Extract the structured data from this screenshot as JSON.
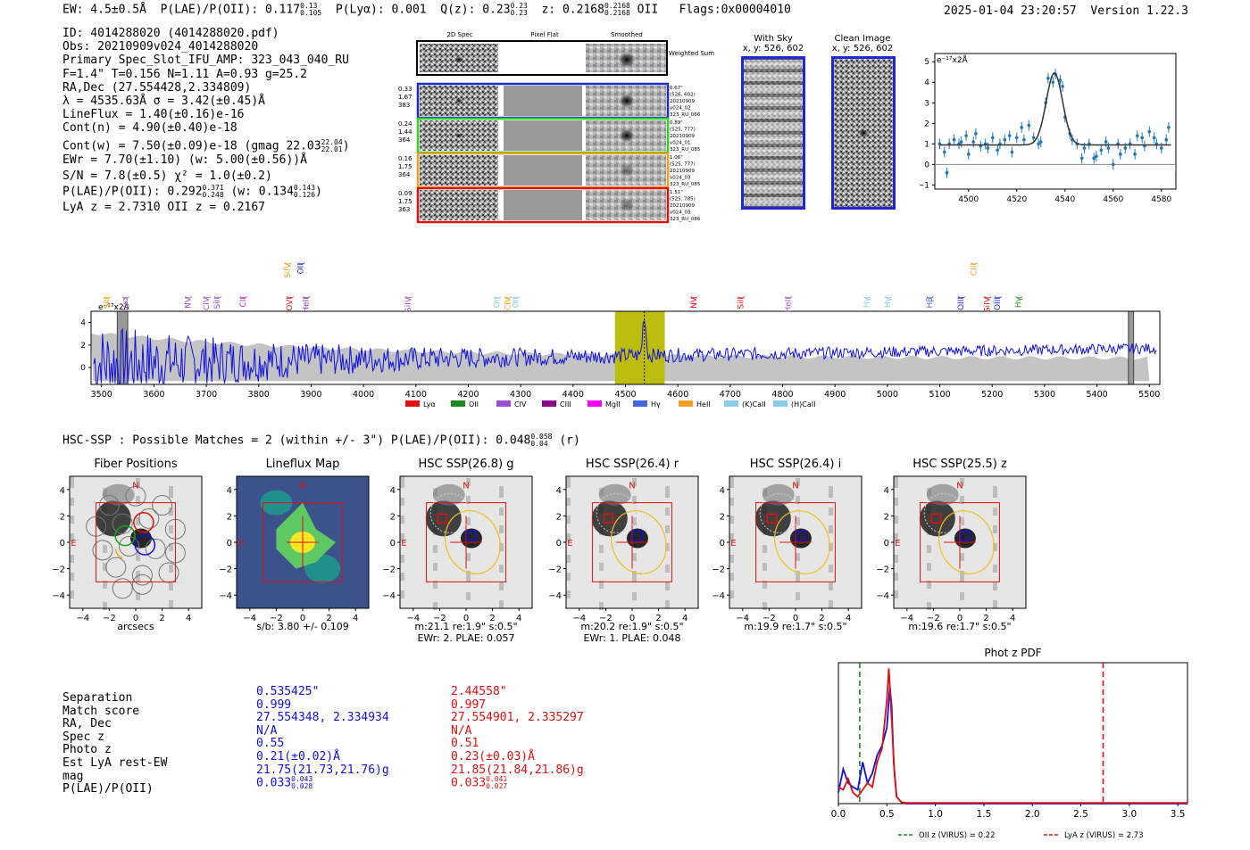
{
  "header": {
    "ew": "EW: 4.5±0.5Å",
    "plae_label": "P(LAE)/P(OII): 0.117",
    "plae_hi": "0.13",
    "plae_lo": "0.105",
    "plya": "P(Lyα): 0.001",
    "qz_label": "Q(z): 0.23",
    "qz_hi": "0.23",
    "qz_lo": "0.23",
    "z_label": "z: 0.2168",
    "z_hi": "0.2168",
    "z_lo": "0.2168",
    "z_line": "OII",
    "flags": "Flags:0x00004010",
    "datetime": "2025-01-04 23:20:57",
    "version": "Version 1.22.3"
  },
  "info": [
    "ID: 4014288020 (4014288020.pdf)",
    "Obs: 20210909v024_4014288020",
    "Primary Spec_Slot_IFU_AMP: 323_043_040_RU",
    "F=1.4\"  T=0.156  N=1.11  A=0.93  g=25.2",
    "RA,Dec (27.554428,2.334809)",
    "λ = 4535.63Å  σ = 3.42(±0.45)Å",
    "LineFlux = 1.40(±0.16)e-16",
    "Cont(n) = 4.90(±0.40)e-18"
  ],
  "info2": {
    "contw": "Cont(w) = 7.50(±0.09)e-18 (gmag 22.03",
    "contw_hi": "22.04",
    "contw_lo": "22.01",
    "contw_end": ")",
    "ewr": "EWr = 7.70(±1.10) (w: 5.00(±0.56))Å",
    "sn": "S/N = 7.8(±0.5)  χ² = 1.0(±0.2)",
    "plae2": "P(LAE)/P(OII): 0.292",
    "plae2_hi": "0.371",
    "plae2_lo": "0.248",
    "plae2_w": "(w: 0.134",
    "plae2_whi": "0.143",
    "plae2_wlo": "0.126",
    "plae2_end": ")",
    "lya": "LyA z = 2.7310  OII z = 0.2167"
  },
  "cutouts": {
    "col_headers": [
      "2D Spec",
      "Pixel Flat",
      "Smoothed"
    ],
    "weighted_label": "Weighted Sum",
    "rows": [
      {
        "left": [
          "0.33",
          "1.67",
          "383"
        ],
        "right": [
          "0.67\"",
          "(526, 602)",
          "20210909",
          "v024_02",
          "323_RU_066"
        ],
        "color": "#1f28d8"
      },
      {
        "left": [
          "0.24",
          "1.44",
          "364"
        ],
        "right": [
          "0.89\"",
          "(525, 777)",
          "20210909",
          "v024_01",
          "323_RU_085"
        ],
        "color": "#2fd12f"
      },
      {
        "left": [
          "0.16",
          "1.75",
          "364"
        ],
        "right": [
          "1.06\"",
          "(525, 777)",
          "20210909",
          "v024_03",
          "323_RU_085"
        ],
        "color": "#f0a020"
      },
      {
        "left": [
          "0.09",
          "1.75",
          "363"
        ],
        "right": [
          "1.51\"",
          "(525, 785)",
          "20210909",
          "v024_03",
          "323_RU_086"
        ],
        "color": "#e01010"
      }
    ]
  },
  "sky": {
    "with_sky": "With Sky",
    "clean": "Clean Image",
    "xy": "x, y: 526, 602"
  },
  "zoom_chart": {
    "unit": "e⁻¹⁷x2Å",
    "x_ticks": [
      "4500",
      "4520",
      "4540",
      "4560",
      "4580"
    ],
    "y_ticks": [
      "5",
      "4",
      "3",
      "2",
      "1",
      "0",
      "−1"
    ]
  },
  "spectrum": {
    "unit": "e⁻¹⁷x2Å",
    "x_ticks": [
      "3500",
      "3600",
      "3700",
      "3800",
      "3900",
      "4000",
      "4100",
      "4200",
      "4300",
      "4400",
      "4500",
      "4600",
      "4700",
      "4800",
      "4900",
      "5000",
      "5100",
      "5200",
      "5300",
      "5400",
      "5500"
    ],
    "y_ticks": [
      "4",
      "2",
      "0"
    ],
    "lines": [
      {
        "name": "SiII",
        "w": 3510,
        "color": "#f0a020",
        "row": 0
      },
      {
        "name": "Lyα",
        "w": 3545,
        "color": "#9b4fd1",
        "row": 0
      },
      {
        "name": "NV",
        "w": 3665,
        "color": "#9b4fd1",
        "row": 0
      },
      {
        "name": "CIV",
        "w": 3700,
        "color": "#9b4fd1",
        "row": 0
      },
      {
        "name": "SiII",
        "w": 3720,
        "color": "#9b4fd1",
        "row": 0
      },
      {
        "name": "CII",
        "w": 3770,
        "color": "#c020c0",
        "row": 0
      },
      {
        "name": "SiIV",
        "w": 3855,
        "color": "#f0a020",
        "row": 1
      },
      {
        "name": "OII",
        "w": 3880,
        "color": "#1f28d8",
        "row": 1
      },
      {
        "name": "OVI",
        "w": 3858,
        "color": "#e01010",
        "row": 0
      },
      {
        "name": "HeII",
        "w": 3890,
        "color": "#7a2f9a",
        "row": 0
      },
      {
        "name": "SiIV",
        "w": 4085,
        "color": "#9b4fd1",
        "row": 0
      },
      {
        "name": "OII",
        "w": 4255,
        "color": "#87ceeb",
        "row": 0
      },
      {
        "name": "CIV",
        "w": 4275,
        "color": "#f0a020",
        "row": 0
      },
      {
        "name": "OII",
        "w": 4290,
        "color": "#87ceeb",
        "row": 0
      },
      {
        "name": "NV",
        "w": 4630,
        "color": "#e01010",
        "row": 0
      },
      {
        "name": "SiII",
        "w": 4720,
        "color": "#e01010",
        "row": 0
      },
      {
        "name": "HeII",
        "w": 4810,
        "color": "#9b4fd1",
        "row": 0
      },
      {
        "name": "Hγ",
        "w": 4960,
        "color": "#87ceeb",
        "row": 0
      },
      {
        "name": "Hγ",
        "w": 5000,
        "color": "#87ceeb",
        "row": 0
      },
      {
        "name": "Hβ",
        "w": 5080,
        "color": "#4169e1",
        "row": 0
      },
      {
        "name": "OIII",
        "w": 5140,
        "color": "#1f28d8",
        "row": 0
      },
      {
        "name": "SiIV",
        "w": 5190,
        "color": "#e01010",
        "row": 0
      },
      {
        "name": "OIII",
        "w": 5210,
        "color": "#1f28d8",
        "row": 0
      },
      {
        "name": "CIII",
        "w": 5165,
        "color": "#f0a020",
        "row": 1
      },
      {
        "name": "Hγ",
        "w": 5250,
        "color": "#1a9a1a",
        "row": 0
      }
    ],
    "legend": [
      {
        "label": "Lyα",
        "color": "#e01010"
      },
      {
        "label": "OII",
        "color": "#1a8a1a"
      },
      {
        "label": "CIV",
        "color": "#9b4fd1"
      },
      {
        "label": "CIII",
        "color": "#8b008b"
      },
      {
        "label": "MgII",
        "color": "#ff00ff"
      },
      {
        "label": "Hγ",
        "color": "#4169e1"
      },
      {
        "label": "HeII",
        "color": "#f0a020"
      },
      {
        "label": "(K)CaII",
        "color": "#87ceeb"
      },
      {
        "label": "(H)CaII",
        "color": "#87ceeb"
      }
    ]
  },
  "hsc": {
    "title": "HSC-SSP : Possible Matches = 2 (within +/- 3\")  P(LAE)/P(OII): 0.048",
    "hi": "0.058",
    "lo": "0.04",
    "band": "(r)"
  },
  "panels": [
    {
      "title": "Fiber Positions",
      "cap1": "arcsecs",
      "cap2": ""
    },
    {
      "title": "Lineflux Map",
      "cap1": "s/b: 3.80 +/- 0.109",
      "cap2": ""
    },
    {
      "title": "HSC SSP(26.8) g",
      "cap1": "m:21.1  re:1.9\"  s:0.5\"",
      "cap2": "EWr: 2. PLAE: 0.057"
    },
    {
      "title": "HSC SSP(26.4) r",
      "cap1": "m:20.2  re:1.9\"  s:0.5\"",
      "cap2": "EWr: 1. PLAE: 0.048"
    },
    {
      "title": "HSC SSP(26.4) i",
      "cap1": "m:19.9  re:1.7\"  s:0.5\"",
      "cap2": ""
    },
    {
      "title": "HSC SSP(25.5) z",
      "cap1": "m:19.6  re:1.7\"  s:0.5\"",
      "cap2": ""
    }
  ],
  "panel_ticks": {
    "x": [
      "−4",
      "−2",
      "0",
      "2",
      "4"
    ],
    "y": [
      "4",
      "2",
      "0",
      "−2",
      "−4"
    ],
    "n": "N",
    "e": "E"
  },
  "match_table": {
    "labels": [
      "Separation",
      "Match score",
      "RA, Dec",
      "Spec z",
      "Photo z",
      "Est LyA rest-EW",
      "mag",
      "P(LAE)/P(OII)"
    ],
    "blue": [
      "0.535425\"",
      "0.999",
      "27.554348, 2.334934",
      "N/A",
      "0.55",
      "0.21(±0.02)Å",
      "21.75(21.73,21.76)g",
      "0.033"
    ],
    "blue_hi": "0.043",
    "blue_lo": "0.028",
    "red": [
      "2.44558\"",
      "0.997",
      "27.554901, 2.335297",
      "N/A",
      "0.51",
      "0.23(±0.03)Å",
      "21.85(21.84,21.86)g",
      "0.033"
    ],
    "red_hi": "0.041",
    "red_lo": "0.027",
    "blue_color": "#1010e0",
    "red_color": "#e01010"
  },
  "chart_data": [
    {
      "type": "line",
      "title": "Phot z PDF",
      "xlabel": "",
      "ylabel": "",
      "xlim": [
        0,
        3.6
      ],
      "x_ticks": [
        "0.0",
        "0.5",
        "1.0",
        "1.5",
        "2.0",
        "2.5",
        "3.0",
        "3.5"
      ],
      "series": [
        {
          "name": "blue match",
          "color": "#1010e0",
          "x": [
            0,
            0.05,
            0.1,
            0.15,
            0.2,
            0.25,
            0.3,
            0.35,
            0.4,
            0.45,
            0.5,
            0.53,
            0.55,
            0.57,
            0.6,
            0.65,
            0.7,
            1.0,
            3.6
          ],
          "y": [
            0.08,
            0.25,
            0.15,
            0.12,
            0.1,
            0.3,
            0.15,
            0.22,
            0.35,
            0.42,
            0.55,
            0.85,
            0.7,
            0.3,
            0.05,
            0.01,
            0,
            0,
            0
          ]
        },
        {
          "name": "red match",
          "color": "#e01010",
          "x": [
            0,
            0.05,
            0.1,
            0.15,
            0.2,
            0.25,
            0.3,
            0.35,
            0.4,
            0.45,
            0.5,
            0.52,
            0.55,
            0.58,
            0.6,
            0.65,
            0.7,
            1.0,
            3.6
          ],
          "y": [
            0.12,
            0.1,
            0.18,
            0.08,
            0.05,
            0.1,
            0.15,
            0.12,
            0.3,
            0.4,
            0.75,
            0.98,
            0.6,
            0.2,
            0.05,
            0.01,
            0.005,
            0.005,
            0.005
          ]
        }
      ],
      "vlines": [
        {
          "x": 0.22,
          "color": "#1a8a1a",
          "label": "OII z (VIRUS) = 0.22"
        },
        {
          "x": 2.73,
          "color": "#e01010",
          "label": "LyA z (VIRUS) = 2.73"
        }
      ]
    },
    {
      "type": "line",
      "title": "",
      "unit": "e⁻¹⁷x2Å",
      "xlim": [
        4486,
        4586
      ],
      "ylim": [
        -1.2,
        5.4
      ],
      "fit": {
        "mu": 4535.6,
        "sigma": 3.4,
        "amp": 3.5,
        "base": 0.95
      },
      "points": [
        [
          4488,
          1.0
        ],
        [
          4490,
          0.6
        ],
        [
          4491,
          -0.4
        ],
        [
          4492,
          1.0
        ],
        [
          4494,
          1.2
        ],
        [
          4496,
          1.0
        ],
        [
          4497,
          1.1
        ],
        [
          4499,
          1.4
        ],
        [
          4500,
          0.5
        ],
        [
          4502,
          1.1
        ],
        [
          4503,
          1.5
        ],
        [
          4505,
          0.9
        ],
        [
          4507,
          1.0
        ],
        [
          4508,
          0.8
        ],
        [
          4510,
          1.3
        ],
        [
          4512,
          0.7
        ],
        [
          4513,
          1.0
        ],
        [
          4515,
          1.2
        ],
        [
          4517,
          1.4
        ],
        [
          4518,
          0.6
        ],
        [
          4520,
          1.3
        ],
        [
          4522,
          1.8
        ],
        [
          4523,
          1.2
        ],
        [
          4525,
          1.9
        ],
        [
          4527,
          1.3
        ],
        [
          4529,
          1.0
        ],
        [
          4530,
          1.1
        ],
        [
          4532,
          3.0
        ],
        [
          4533,
          4.2
        ],
        [
          4535,
          4.0
        ],
        [
          4536,
          4.4
        ],
        [
          4538,
          4.1
        ],
        [
          4539,
          3.8
        ],
        [
          4540,
          2.3
        ],
        [
          4542,
          1.5
        ],
        [
          4543,
          1.2
        ],
        [
          4545,
          1.0
        ],
        [
          4547,
          0.3
        ],
        [
          4548,
          0.8
        ],
        [
          4550,
          1.0
        ],
        [
          4552,
          0.3
        ],
        [
          4553,
          0.4
        ],
        [
          4555,
          0.7
        ],
        [
          4557,
          1.1
        ],
        [
          4558,
          0.8
        ],
        [
          4560,
          0.0
        ],
        [
          4562,
          1.0
        ],
        [
          4563,
          0.5
        ],
        [
          4565,
          0.8
        ],
        [
          4567,
          1.0
        ],
        [
          4569,
          0.5
        ],
        [
          4570,
          1.4
        ],
        [
          4572,
          1.3
        ],
        [
          4573,
          0.9
        ],
        [
          4575,
          1.6
        ],
        [
          4577,
          1.3
        ],
        [
          4578,
          1.0
        ],
        [
          4580,
          0.8
        ],
        [
          4582,
          1.2
        ],
        [
          4583,
          1.8
        ]
      ]
    },
    {
      "type": "line",
      "title": "",
      "xlim": [
        3480,
        5520
      ],
      "ylim": [
        -1.5,
        5
      ],
      "highlight": {
        "from": 4480,
        "to": 4575,
        "color": "#bdbd10"
      },
      "marker": 4536,
      "gaps": [
        [
          3530,
          3550
        ],
        [
          5460,
          5470
        ]
      ]
    }
  ]
}
